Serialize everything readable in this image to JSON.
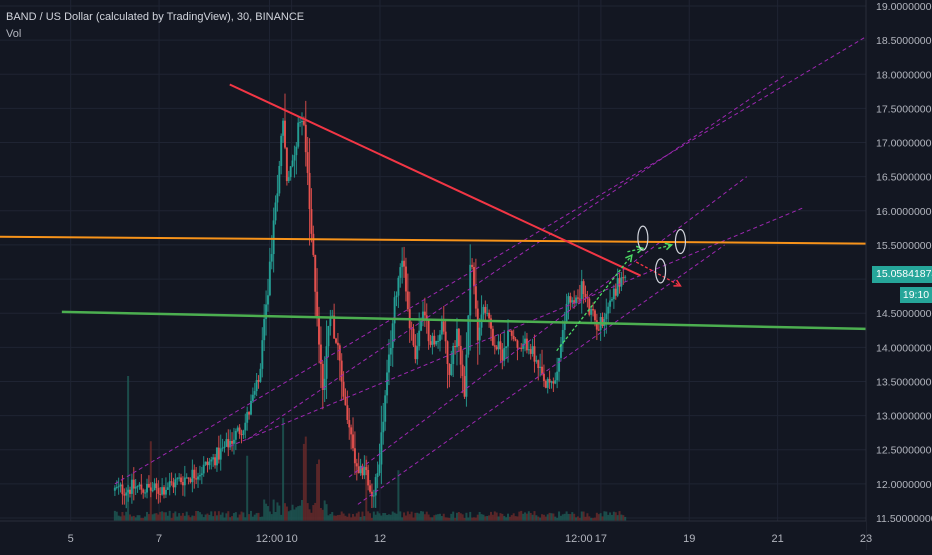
{
  "header": {
    "symbol_title": "BAND / US Dollar (calculated by TradingView), 30, BINANCE",
    "volume_label": "Vol"
  },
  "last_price": {
    "value": "15.05841874",
    "countdown": "19:10",
    "color": "#26a69a"
  },
  "colors": {
    "background": "#131722",
    "up_candle": "#26a69a",
    "down_candle": "#ef5350",
    "resistance_line": "#f7931a",
    "support_line": "#4caf50",
    "downtrend_line": "#f23645",
    "channel_lines": "#9c27b0",
    "arrow_green": "#4cd964",
    "arrow_red": "#f23645"
  },
  "chart_data": {
    "type": "candlestick",
    "title": "BAND / US Dollar (calculated by TradingView), 30, BINANCE",
    "interval": "30",
    "exchange": "BINANCE",
    "y_axis": {
      "min": 11.5,
      "max": 19.0,
      "ticks": [
        "11.50000000",
        "12.00000000",
        "12.50000000",
        "13.00000000",
        "13.50000000",
        "14.00000000",
        "14.50000000",
        "15.00000000",
        "15.50000000",
        "16.00000000",
        "16.50000000",
        "17.00000000",
        "17.50000000",
        "18.00000000",
        "18.50000000",
        "19.00000000"
      ]
    },
    "x_axis": {
      "ticks": [
        "5",
        "7",
        "12:00",
        "10",
        "12",
        "12:00",
        "17",
        "19",
        "21",
        "23"
      ],
      "tick_days": [
        5,
        7,
        9.5,
        10,
        12,
        16.5,
        17,
        19,
        21,
        23
      ],
      "day_range": [
        3.4,
        23
      ]
    },
    "price_path": [
      [
        6.0,
        11.9
      ],
      [
        6.5,
        11.95
      ],
      [
        7.0,
        11.9
      ],
      [
        7.5,
        12.05
      ],
      [
        8.0,
        12.2
      ],
      [
        8.5,
        12.5
      ],
      [
        9.0,
        12.9
      ],
      [
        9.3,
        13.5
      ],
      [
        9.5,
        14.8
      ],
      [
        9.7,
        16.2
      ],
      [
        9.85,
        17.4
      ],
      [
        9.95,
        16.3
      ],
      [
        10.1,
        16.9
      ],
      [
        10.3,
        17.5
      ],
      [
        10.45,
        16.0
      ],
      [
        10.6,
        14.7
      ],
      [
        10.75,
        13.3
      ],
      [
        10.9,
        14.6
      ],
      [
        11.05,
        14.1
      ],
      [
        11.2,
        13.4
      ],
      [
        11.4,
        12.6
      ],
      [
        11.55,
        12.05
      ],
      [
        11.7,
        12.3
      ],
      [
        11.85,
        11.7
      ],
      [
        12.0,
        12.2
      ],
      [
        12.2,
        13.5
      ],
      [
        12.4,
        14.8
      ],
      [
        12.55,
        15.4
      ],
      [
        12.7,
        14.4
      ],
      [
        12.85,
        13.9
      ],
      [
        13.0,
        14.5
      ],
      [
        13.15,
        14.2
      ],
      [
        13.3,
        14.0
      ],
      [
        13.45,
        14.4
      ],
      [
        13.6,
        13.6
      ],
      [
        13.8,
        14.3
      ],
      [
        13.95,
        13.3
      ],
      [
        14.1,
        15.4
      ],
      [
        14.25,
        14.2
      ],
      [
        14.4,
        14.7
      ],
      [
        14.6,
        14.1
      ],
      [
        14.8,
        13.9
      ],
      [
        15.0,
        14.3
      ],
      [
        15.2,
        13.9
      ],
      [
        15.4,
        14.1
      ],
      [
        15.6,
        13.7
      ],
      [
        15.8,
        13.4
      ],
      [
        16.0,
        13.5
      ],
      [
        16.15,
        14.0
      ],
      [
        16.3,
        14.8
      ],
      [
        16.45,
        14.6
      ],
      [
        16.6,
        14.9
      ],
      [
        16.8,
        14.5
      ],
      [
        17.0,
        14.3
      ],
      [
        17.2,
        14.6
      ],
      [
        17.4,
        14.9
      ],
      [
        17.55,
        15.05
      ]
    ],
    "volume_spikes": [
      [
        6.3,
        1.0
      ],
      [
        6.8,
        0.55
      ],
      [
        9.0,
        0.45
      ],
      [
        9.8,
        0.7
      ],
      [
        10.3,
        0.5
      ],
      [
        10.6,
        0.35
      ],
      [
        11.7,
        0.45
      ],
      [
        12.4,
        0.35
      ]
    ],
    "annotations": {
      "resistance_line": {
        "from": [
          3.4,
          15.62
        ],
        "to": [
          23,
          15.52
        ]
      },
      "support_line": {
        "from": [
          4.8,
          14.52
        ],
        "to": [
          23,
          14.27
        ]
      },
      "downtrend_line": {
        "from": [
          8.6,
          17.85
        ],
        "to": [
          17.9,
          15.05
        ]
      },
      "channel_lines": [
        {
          "from": [
            6.0,
            12.0
          ],
          "to": [
            23,
            18.55
          ]
        },
        {
          "from": [
            8.6,
            12.55
          ],
          "to": [
            21.6,
            16.05
          ]
        },
        {
          "from": [
            9.0,
            12.65
          ],
          "to": [
            21.2,
            18.0
          ]
        },
        {
          "from": [
            11.3,
            12.1
          ],
          "to": [
            20.3,
            16.5
          ]
        },
        {
          "from": [
            11.5,
            11.7
          ],
          "to": [
            19.8,
            15.5
          ]
        }
      ],
      "green_arrows": [
        {
          "from": [
            16.0,
            13.95
          ],
          "to": [
            17.7,
            15.35
          ]
        },
        {
          "from": [
            17.6,
            15.4
          ],
          "to": [
            17.95,
            15.45
          ]
        },
        {
          "from": [
            18.3,
            15.45
          ],
          "to": [
            18.6,
            15.5
          ]
        }
      ],
      "red_arrow": {
        "from": [
          17.8,
          15.25
        ],
        "to": [
          18.8,
          14.9
        ]
      },
      "ellipses": [
        [
          17.95,
          15.6
        ],
        [
          18.35,
          15.12
        ],
        [
          18.8,
          15.55
        ]
      ]
    }
  }
}
